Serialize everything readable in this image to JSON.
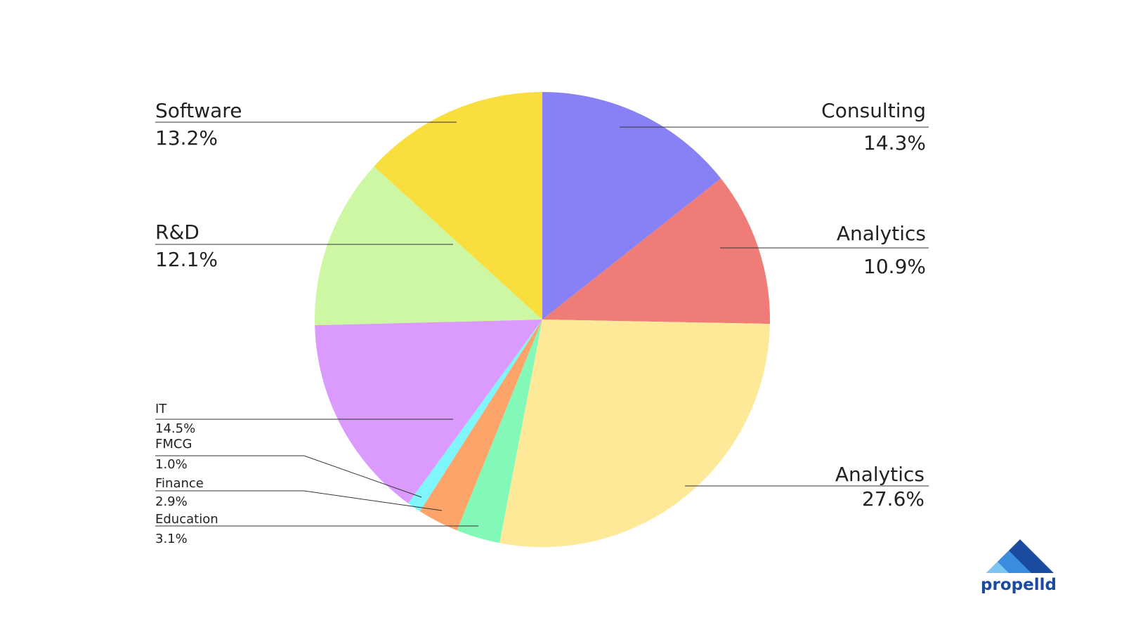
{
  "chart_data": {
    "type": "pie",
    "categories": [
      "Consulting",
      "Analytics",
      "Analytics",
      "Education",
      "Finance",
      "FMCG",
      "IT",
      "R&D",
      "Software"
    ],
    "values": [
      14.3,
      10.9,
      27.6,
      3.1,
      2.9,
      1.0,
      14.5,
      12.1,
      13.2
    ],
    "value_labels": [
      "14.3%",
      "10.9%",
      "27.6%",
      "3.1%",
      "2.9%",
      "1.0%",
      "14.5%",
      "12.1%",
      "13.2%"
    ],
    "colors": [
      "#8880f5",
      "#ef7c76",
      "#fee999",
      "#82f9b8",
      "#fca46a",
      "#7ef6fb",
      "#da9afe",
      "#cdf7a3",
      "#f9df3d"
    ]
  },
  "logo": "propelld"
}
